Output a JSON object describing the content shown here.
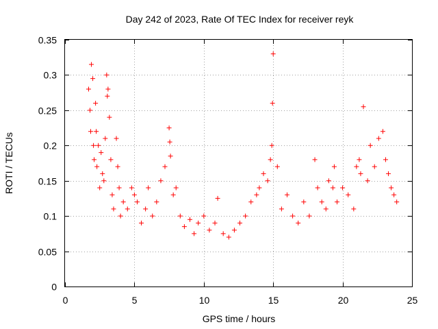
{
  "chart_data": {
    "type": "scatter",
    "title": "Day 242 of 2023, Rate Of TEC Index for receiver reyk",
    "xlabel": "GPS time / hours",
    "ylabel": "ROTI / TECUs",
    "xlim": [
      0,
      25
    ],
    "ylim": [
      0,
      0.35
    ],
    "x_ticks": [
      0,
      5,
      10,
      15,
      20,
      25
    ],
    "x_tick_labels": [
      "0",
      "5",
      "10",
      "15",
      "20",
      "25"
    ],
    "y_ticks": [
      0,
      0.05,
      0.1,
      0.15,
      0.2,
      0.25,
      0.3,
      0.35
    ],
    "y_tick_labels": [
      "0",
      "0.05",
      "0.1",
      "0.15",
      "0.2",
      "0.25",
      "0.3",
      "0.35"
    ],
    "grid": true,
    "marker": "plus",
    "color": "#ff0000",
    "series": [
      {
        "name": "ROTI",
        "x": [
          1.7,
          1.8,
          1.85,
          1.9,
          2.0,
          2.05,
          2.1,
          2.2,
          2.25,
          2.3,
          2.4,
          2.5,
          2.6,
          2.7,
          2.8,
          2.9,
          3.0,
          3.05,
          3.1,
          3.2,
          3.3,
          3.4,
          3.5,
          3.7,
          3.8,
          3.9,
          4.0,
          4.2,
          4.5,
          4.8,
          5.0,
          5.2,
          5.5,
          5.8,
          6.0,
          6.3,
          6.6,
          6.9,
          7.2,
          7.5,
          7.55,
          7.6,
          7.8,
          8.0,
          8.3,
          8.6,
          9.0,
          9.3,
          9.6,
          10.0,
          10.4,
          10.8,
          11.0,
          11.4,
          11.8,
          12.2,
          12.6,
          13.0,
          13.4,
          13.8,
          14.0,
          14.3,
          14.6,
          14.8,
          14.9,
          14.95,
          15.0,
          15.3,
          15.6,
          16.0,
          16.4,
          16.8,
          17.2,
          17.6,
          18.0,
          18.2,
          18.5,
          18.8,
          19.0,
          19.3,
          19.4,
          19.6,
          20.0,
          20.4,
          20.8,
          21.0,
          21.2,
          21.3,
          21.5,
          21.8,
          22.0,
          22.3,
          22.6,
          22.9,
          23.1,
          23.3,
          23.5,
          23.7,
          23.9
        ],
        "y": [
          0.28,
          0.25,
          0.22,
          0.315,
          0.295,
          0.2,
          0.18,
          0.26,
          0.22,
          0.17,
          0.2,
          0.14,
          0.19,
          0.16,
          0.15,
          0.21,
          0.3,
          0.27,
          0.28,
          0.24,
          0.18,
          0.13,
          0.11,
          0.21,
          0.17,
          0.14,
          0.1,
          0.12,
          0.11,
          0.14,
          0.13,
          0.12,
          0.09,
          0.11,
          0.14,
          0.1,
          0.12,
          0.15,
          0.17,
          0.225,
          0.205,
          0.185,
          0.13,
          0.14,
          0.1,
          0.085,
          0.095,
          0.075,
          0.09,
          0.1,
          0.08,
          0.09,
          0.125,
          0.075,
          0.07,
          0.08,
          0.09,
          0.1,
          0.12,
          0.13,
          0.14,
          0.16,
          0.15,
          0.18,
          0.2,
          0.26,
          0.33,
          0.17,
          0.11,
          0.13,
          0.1,
          0.09,
          0.12,
          0.1,
          0.18,
          0.14,
          0.12,
          0.11,
          0.15,
          0.14,
          0.17,
          0.12,
          0.14,
          0.13,
          0.11,
          0.17,
          0.18,
          0.16,
          0.255,
          0.15,
          0.2,
          0.17,
          0.21,
          0.22,
          0.18,
          0.16,
          0.14,
          0.13,
          0.12
        ]
      }
    ]
  }
}
